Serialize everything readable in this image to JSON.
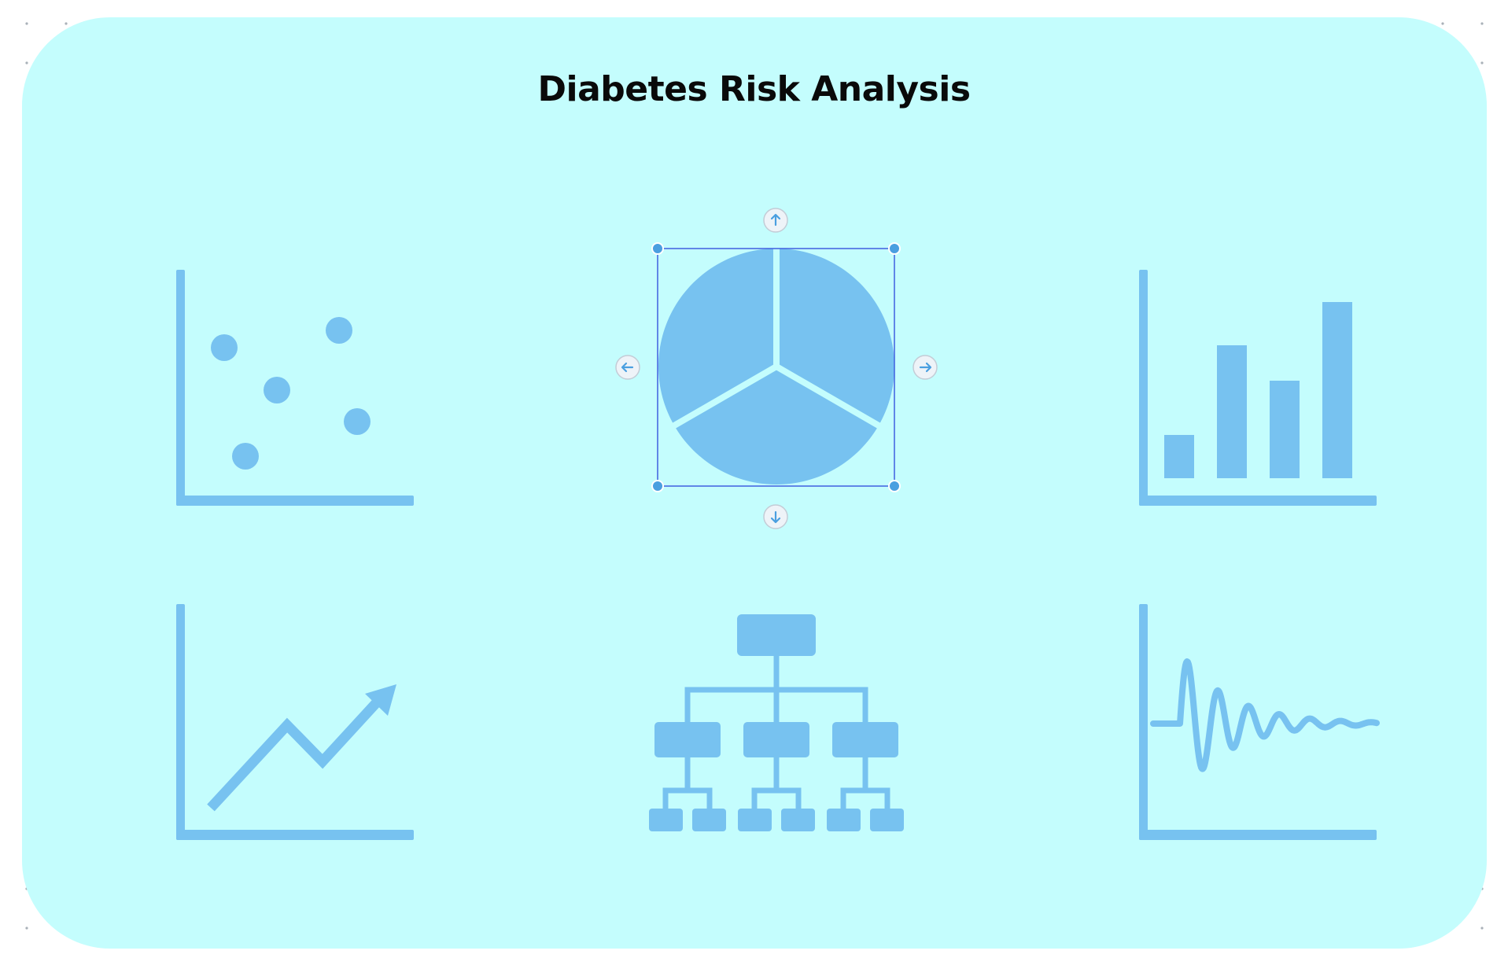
{
  "canvas": {
    "background": "#ffffff",
    "dot_color": "#a9b1b8"
  },
  "card": {
    "background": "#c4fdfd"
  },
  "title": "Diabetes Risk Analysis",
  "icon_color": "#77c2f0",
  "selection": {
    "target": "pie-chart-icon",
    "frame_color": "#3f5fe0",
    "handle_color": "#4a9fe0",
    "arrow_color": "#4a9fe0",
    "nudge_buttons": [
      "up",
      "down",
      "left",
      "right"
    ]
  },
  "icons": [
    "scatter-plot-icon",
    "pie-chart-icon",
    "bar-chart-icon",
    "trend-line-chart-icon",
    "org-chart-icon",
    "damped-wave-chart-icon"
  ]
}
